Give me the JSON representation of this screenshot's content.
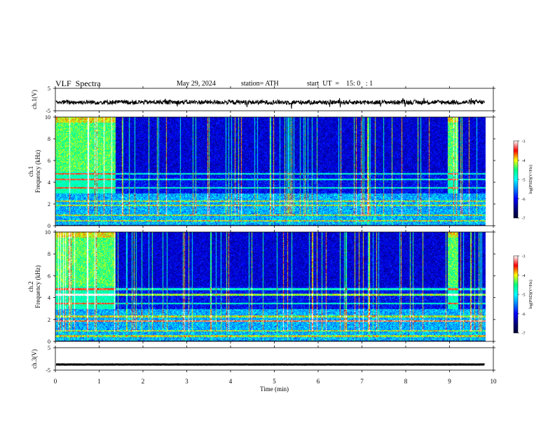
{
  "header": {
    "title": "VLF  Spectra",
    "date": "May 29, 2024",
    "station": "station= ATH",
    "start": "start  UT  =    15: 0   : 1"
  },
  "colors": {
    "spectrogram_scale": [
      "#000033",
      "#000080",
      "#0000ff",
      "#0080ff",
      "#00ffff",
      "#00ff80",
      "#ffff00",
      "#ff0000",
      "#ffffff"
    ],
    "trace": "#000000"
  },
  "chart_data": [
    {
      "type": "line",
      "name": "ch1-waveform",
      "ylabel": "ch.1(V)",
      "yticks": [
        "5",
        "-5"
      ],
      "ylim": [
        -5,
        5
      ],
      "xlim": [
        0,
        10
      ],
      "baseline": -1.2,
      "noise_amplitude": 1.0,
      "signal_end": 9.8
    },
    {
      "type": "heatmap",
      "name": "ch1-spectrogram",
      "ylabel": "ch.1\nFrequency (kHz)",
      "yticks": [
        "0",
        "2",
        "4",
        "6",
        "8",
        "10"
      ],
      "ylim": [
        0,
        10
      ],
      "xlim": [
        0,
        10
      ],
      "colorbar": {
        "label": "log(PSD)(V²/Hz)",
        "ticks": [
          "-3",
          "-4",
          "-5",
          "-6",
          "-7"
        ],
        "range": [
          -7,
          -3
        ]
      },
      "bands_khz": [
        0.5,
        1.0,
        1.9,
        2.3,
        3.5,
        4.3,
        4.8
      ]
    },
    {
      "type": "heatmap",
      "name": "ch2-spectrogram",
      "ylabel": "ch.2\nFrequency (kHz)",
      "yticks": [
        "0",
        "2",
        "4",
        "6",
        "8",
        "10"
      ],
      "ylim": [
        0,
        10
      ],
      "xlim": [
        0,
        10
      ],
      "colorbar": {
        "label": "log(PSD)(V²/Hz)",
        "ticks": [
          "-3",
          "-4",
          "-5",
          "-6",
          "-7"
        ],
        "range": [
          -7,
          -3
        ]
      },
      "bands_khz": [
        0.5,
        1.0,
        1.9,
        2.3,
        3.5,
        4.3,
        4.8
      ]
    },
    {
      "type": "line",
      "name": "ch3-waveform",
      "ylabel": "ch.3(V)",
      "yticks": [
        "5",
        "-5"
      ],
      "ylim": [
        -5,
        5
      ],
      "xlim": [
        0,
        10
      ],
      "baseline": -2.5,
      "noise_amplitude": 0.05,
      "signal_end": 9.8,
      "xlabel": "Time  (min)",
      "xticks": [
        "0",
        "1",
        "2",
        "3",
        "4",
        "5",
        "6",
        "7",
        "8",
        "9",
        "10"
      ]
    }
  ]
}
